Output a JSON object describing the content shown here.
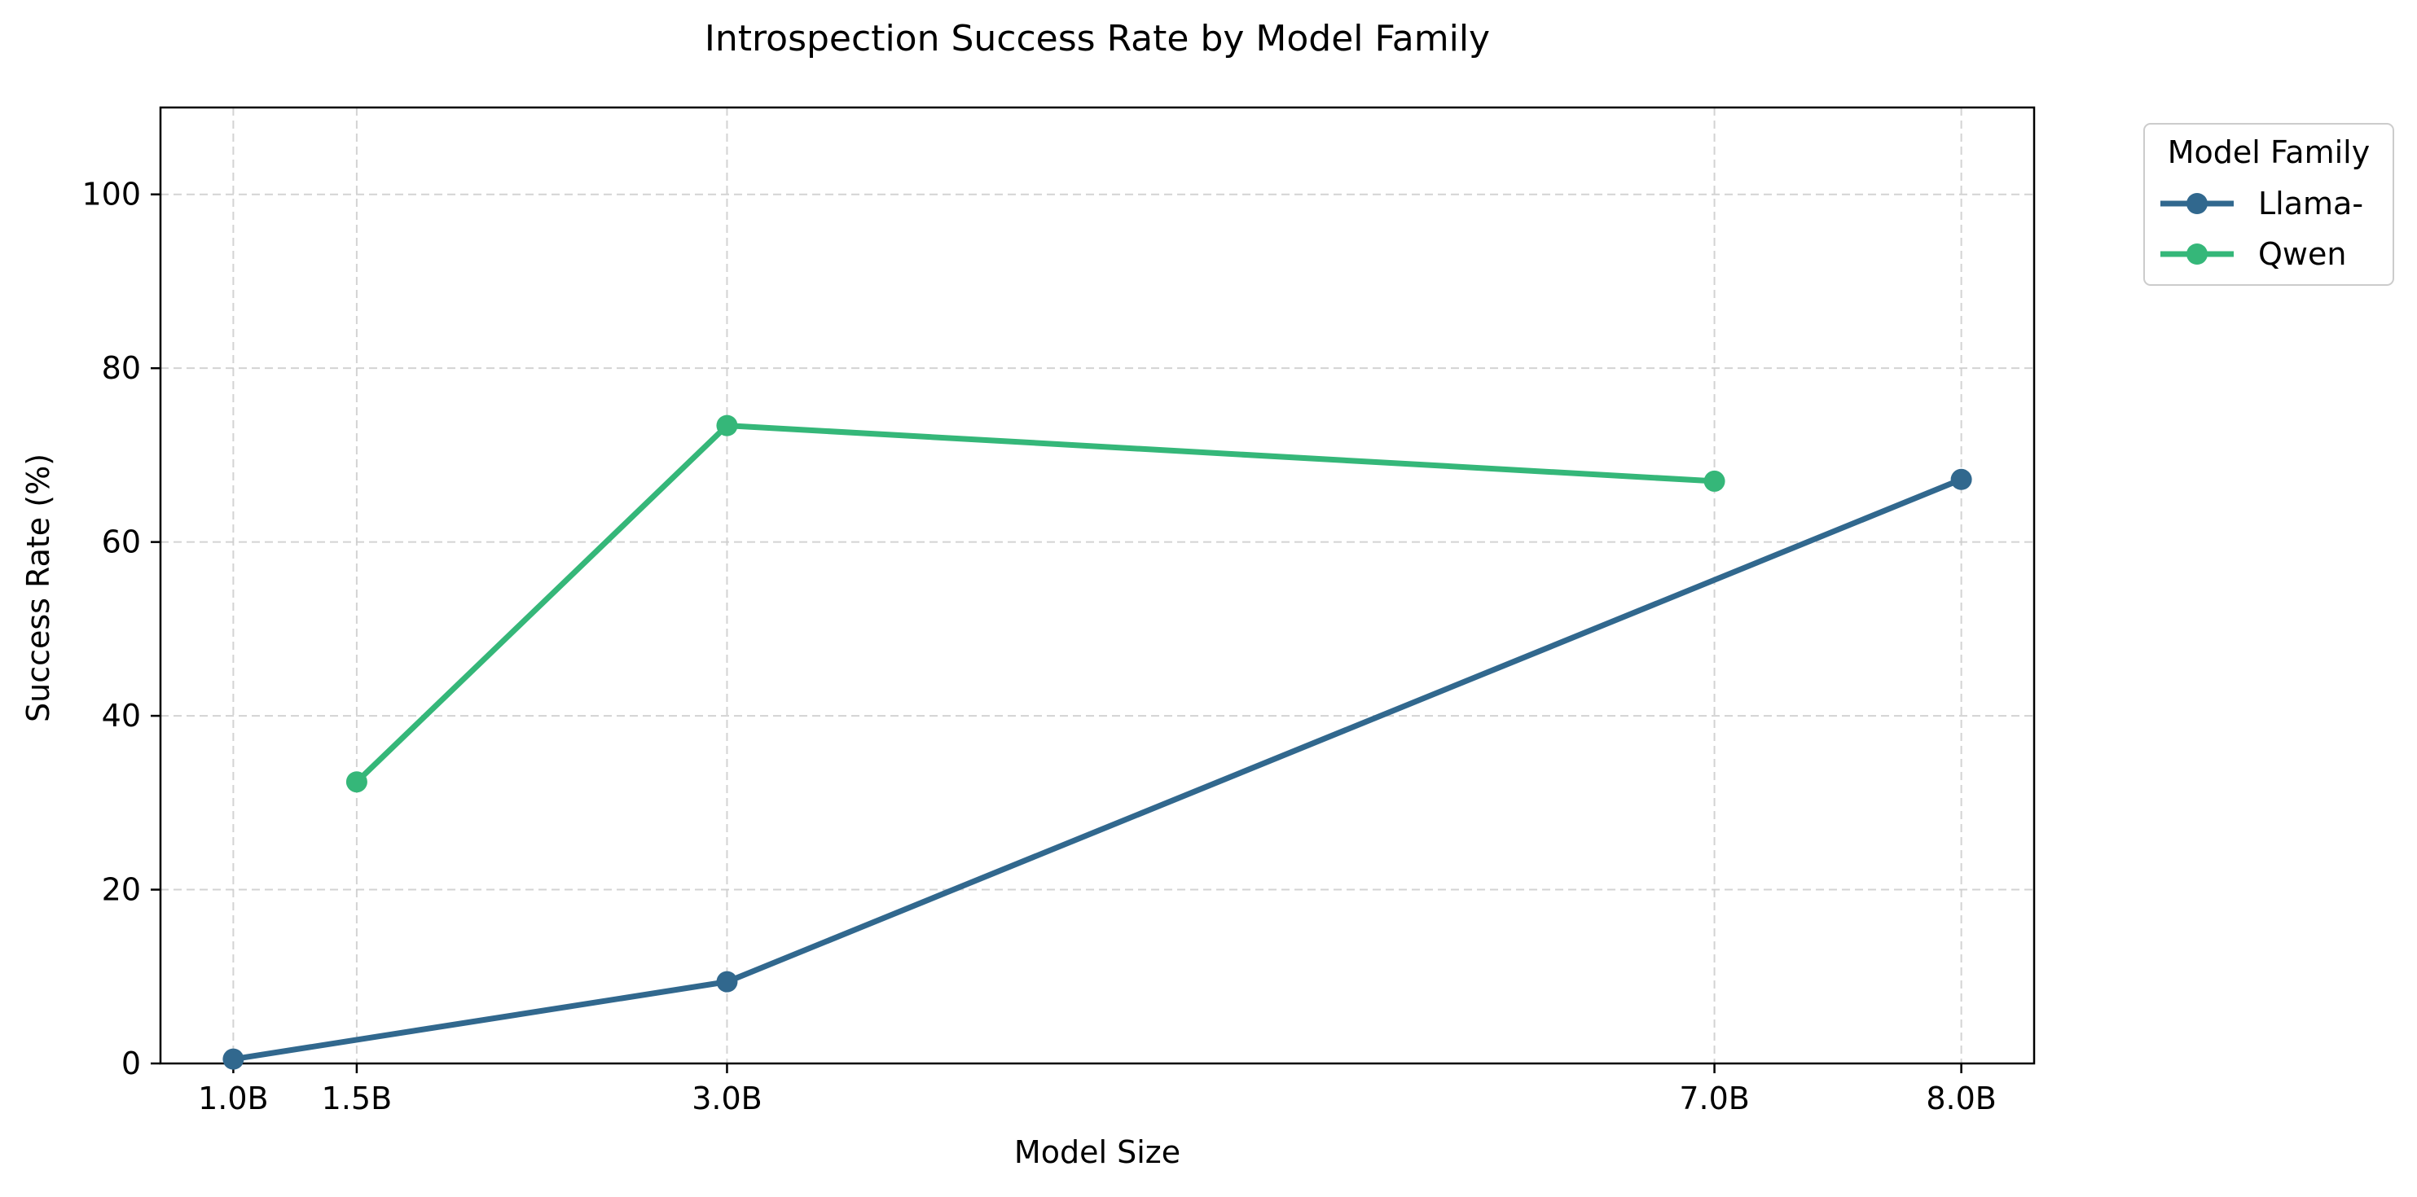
{
  "chart_data": {
    "type": "line",
    "title": "Introspection Success Rate by Model Family",
    "xlabel": "Model Size",
    "ylabel": "Success Rate (%)",
    "x": [
      1.0,
      1.5,
      3.0,
      7.0,
      8.0
    ],
    "x_tick_labels": [
      "1.0B",
      "1.5B",
      "3.0B",
      "7.0B",
      "8.0B"
    ],
    "xlim": [
      0.705,
      8.295
    ],
    "ylim": [
      0,
      110
    ],
    "y_ticks": [
      0,
      20,
      40,
      60,
      80,
      100
    ],
    "grid": true,
    "legend": {
      "title": "Model Family",
      "placement": "outside-top-right"
    },
    "series": [
      {
        "name": "Llama-",
        "color": "#31688e",
        "points": [
          {
            "x": 1.0,
            "y": 0.5
          },
          {
            "x": 3.0,
            "y": 9.4
          },
          {
            "x": 8.0,
            "y": 67.2
          }
        ]
      },
      {
        "name": "Qwen",
        "color": "#35b779",
        "points": [
          {
            "x": 1.5,
            "y": 32.4
          },
          {
            "x": 3.0,
            "y": 73.4
          },
          {
            "x": 7.0,
            "y": 67.0
          }
        ]
      }
    ]
  }
}
